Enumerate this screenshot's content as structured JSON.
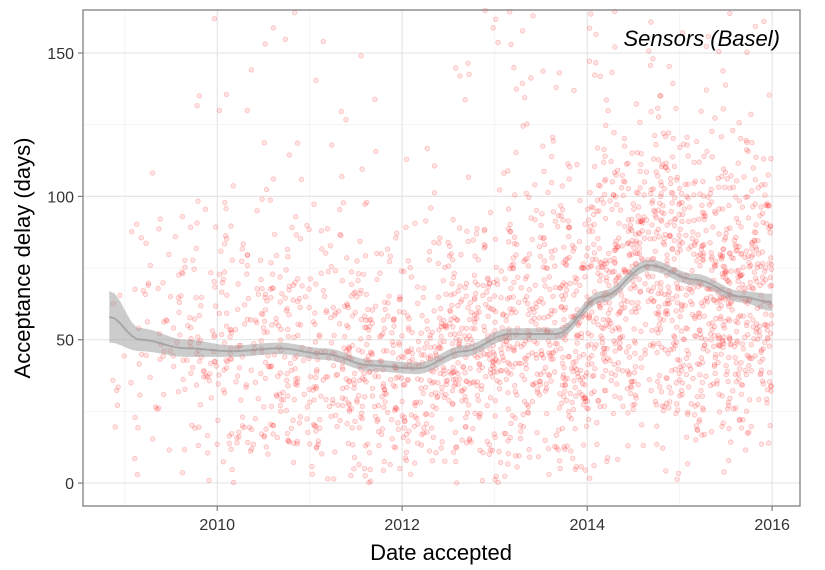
{
  "chart_data": {
    "type": "scatter",
    "annotation": "Sensors (Basel)",
    "xlabel": "Date accepted",
    "ylabel": "Acceptance delay (days)",
    "xlim": [
      "2008-07-20",
      "2016-04-20"
    ],
    "ylim": [
      -8,
      165
    ],
    "x_ticks": [
      {
        "date": "2010-01-01",
        "label": "2010"
      },
      {
        "date": "2012-01-01",
        "label": "2012"
      },
      {
        "date": "2014-01-01",
        "label": "2014"
      },
      {
        "date": "2016-01-01",
        "label": "2016"
      }
    ],
    "y_ticks": [
      {
        "value": 0,
        "label": "0"
      },
      {
        "value": 50,
        "label": "50"
      },
      {
        "value": 100,
        "label": "100"
      },
      {
        "value": 150,
        "label": "150"
      }
    ],
    "grid": true,
    "point_color": "#ff0000",
    "smooth_color": "#999999",
    "smooth_fill": "#999999",
    "smooth_trend": [
      {
        "x": "2008-11-01",
        "y": 58,
        "lo": 49,
        "hi": 67
      },
      {
        "x": "2009-03-01",
        "y": 50,
        "lo": 46,
        "hi": 54
      },
      {
        "x": "2009-09-01",
        "y": 47,
        "lo": 44,
        "hi": 50
      },
      {
        "x": "2010-03-01",
        "y": 46,
        "lo": 44,
        "hi": 48
      },
      {
        "x": "2010-09-01",
        "y": 47,
        "lo": 45,
        "hi": 49
      },
      {
        "x": "2011-03-01",
        "y": 45,
        "lo": 43,
        "hi": 47
      },
      {
        "x": "2011-09-01",
        "y": 41,
        "lo": 39,
        "hi": 43
      },
      {
        "x": "2012-03-01",
        "y": 40,
        "lo": 38,
        "hi": 42
      },
      {
        "x": "2012-09-01",
        "y": 46,
        "lo": 44,
        "hi": 48
      },
      {
        "x": "2013-03-01",
        "y": 52,
        "lo": 50,
        "hi": 54
      },
      {
        "x": "2013-09-01",
        "y": 52,
        "lo": 50,
        "hi": 54
      },
      {
        "x": "2014-03-01",
        "y": 65,
        "lo": 63,
        "hi": 67
      },
      {
        "x": "2014-09-01",
        "y": 76,
        "lo": 74,
        "hi": 78
      },
      {
        "x": "2015-03-01",
        "y": 71,
        "lo": 69,
        "hi": 73
      },
      {
        "x": "2015-09-01",
        "y": 65,
        "lo": 63,
        "hi": 67
      },
      {
        "x": "2015-12-31",
        "y": 63,
        "lo": 60,
        "hi": 66
      }
    ]
  }
}
